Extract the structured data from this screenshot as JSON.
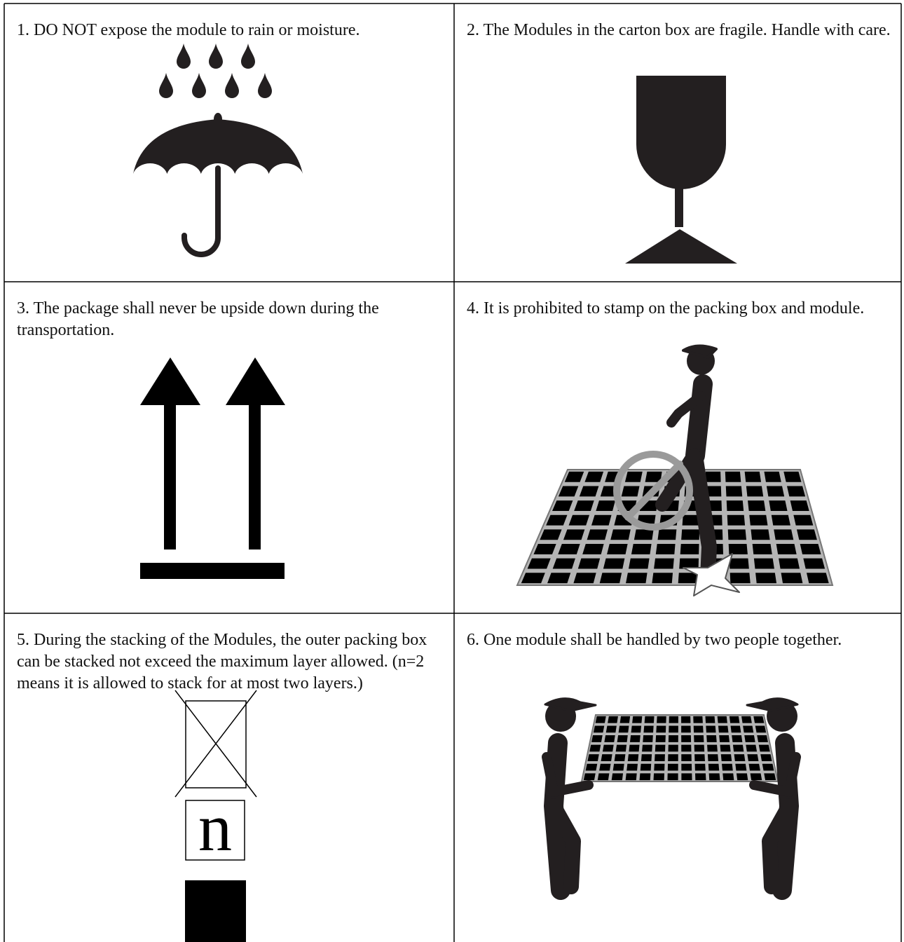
{
  "table": {
    "cells": [
      {
        "text": "1. DO NOT expose the module to rain or moisture."
      },
      {
        "text": "2. The Modules in the carton box are fragile. Handle with care."
      },
      {
        "text": "3. The package shall never be upside down during the transportation."
      },
      {
        "text": "4. It is prohibited to stamp on the packing box and module."
      },
      {
        "text": "5. During the stacking of the Modules, the outer packing box can be stacked not exceed the maximum layer allowed. (n=2 means it is allowed to stack for at most two layers.)",
        "icon_label": "n"
      },
      {
        "text": "6. One module shall be handled by two people together."
      }
    ]
  }
}
